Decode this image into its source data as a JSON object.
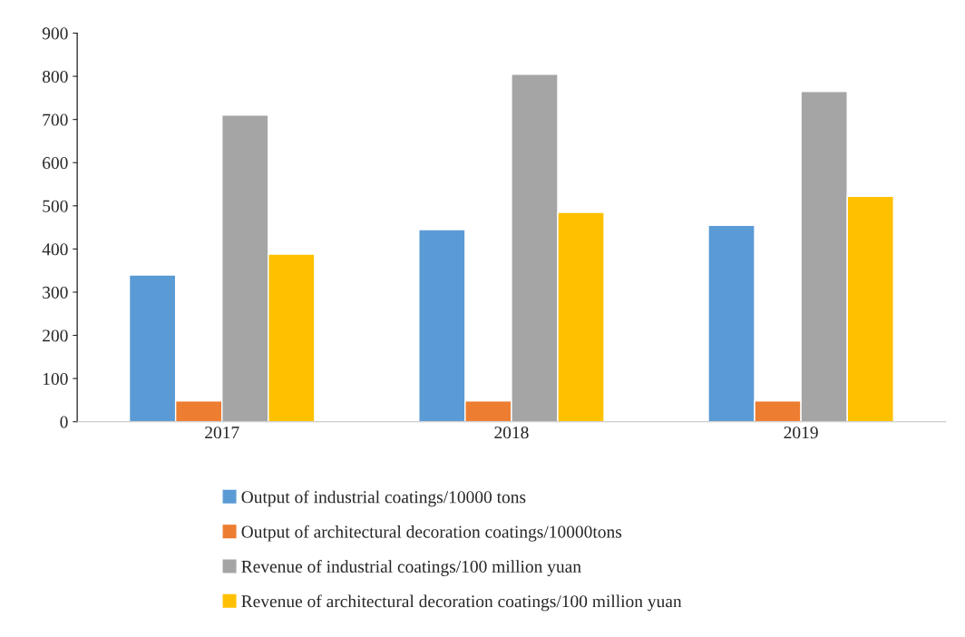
{
  "chart_data": {
    "type": "bar",
    "categories": [
      "2017",
      "2018",
      "2019"
    ],
    "series": [
      {
        "name": "Output of industrial coatings/10000 tons",
        "color": "#5b9bd5",
        "values": [
          340,
          445,
          455
        ]
      },
      {
        "name": "Output of architectural decoration coatings/10000tons",
        "color": "#ed7d31",
        "values": [
          48,
          48,
          48
        ]
      },
      {
        "name": "Revenue of industrial coatings/100 million yuan",
        "color": "#a5a5a5",
        "values": [
          710,
          805,
          765
        ]
      },
      {
        "name": "Revenue of architectural decoration coatings/100 million yuan",
        "color": "#ffc000",
        "values": [
          388,
          485,
          522
        ]
      }
    ],
    "ylim": [
      0,
      900
    ],
    "yticks": [
      0,
      100,
      200,
      300,
      400,
      500,
      600,
      700,
      800,
      900
    ],
    "grid": false,
    "legend": "bottom"
  }
}
